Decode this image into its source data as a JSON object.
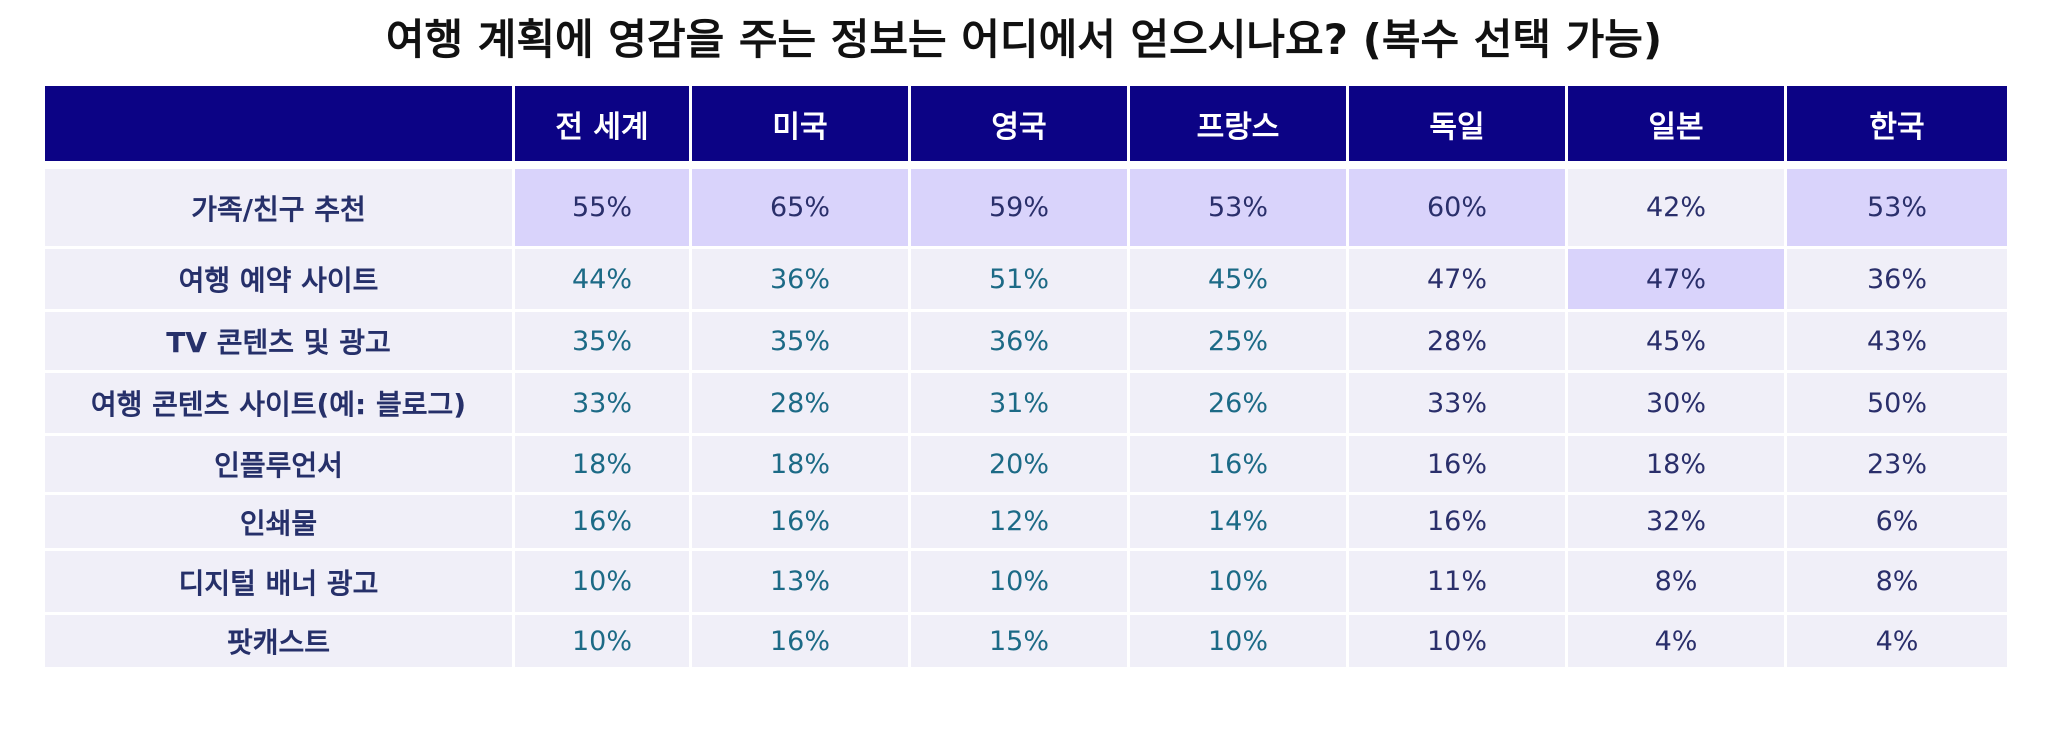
{
  "chart_data": {
    "type": "table",
    "title": "여행 계획에 영감을 주는 정보는 어디에서 얻으시나요? (복수 선택 가능)",
    "columns": [
      "",
      "전 세계",
      "미국",
      "영국",
      "프랑스",
      "독일",
      "일본",
      "한국"
    ],
    "rows": [
      {
        "label": "가족/친구 추천",
        "values": [
          "55%",
          "65%",
          "59%",
          "53%",
          "60%",
          "42%",
          "53%"
        ]
      },
      {
        "label": "여행 예약 사이트",
        "values": [
          "44%",
          "36%",
          "51%",
          "45%",
          "47%",
          "47%",
          "36%"
        ]
      },
      {
        "label": "TV 콘텐츠 및 광고",
        "values": [
          "35%",
          "35%",
          "36%",
          "25%",
          "28%",
          "45%",
          "43%"
        ]
      },
      {
        "label": "여행 콘텐츠 사이트(예: 블로그)",
        "values": [
          "33%",
          "28%",
          "31%",
          "26%",
          "33%",
          "30%",
          "50%"
        ]
      },
      {
        "label": "인플루언서",
        "values": [
          "18%",
          "18%",
          "20%",
          "16%",
          "16%",
          "18%",
          "23%"
        ]
      },
      {
        "label": "인쇄물",
        "values": [
          "16%",
          "16%",
          "12%",
          "14%",
          "16%",
          "32%",
          "6%"
        ]
      },
      {
        "label": "디지털 배너 광고",
        "values": [
          "10%",
          "13%",
          "10%",
          "10%",
          "11%",
          "8%",
          "8%"
        ]
      },
      {
        "label": "팟캐스트",
        "values": [
          "10%",
          "16%",
          "15%",
          "10%",
          "10%",
          "4%",
          "4%"
        ]
      }
    ],
    "highlighted_cells": [
      [
        0,
        0
      ],
      [
        0,
        1
      ],
      [
        0,
        2
      ],
      [
        0,
        3
      ],
      [
        0,
        4
      ],
      [
        0,
        6
      ],
      [
        1,
        5
      ]
    ],
    "colors": {
      "header_bg": "#0c0385",
      "cell_bg": "#f0eff8",
      "highlight_bg": "#d9d3fb",
      "label_text": "#26306a",
      "value_text_dark": "#2a2f6b",
      "value_text_teal": "#1c6a86"
    }
  }
}
